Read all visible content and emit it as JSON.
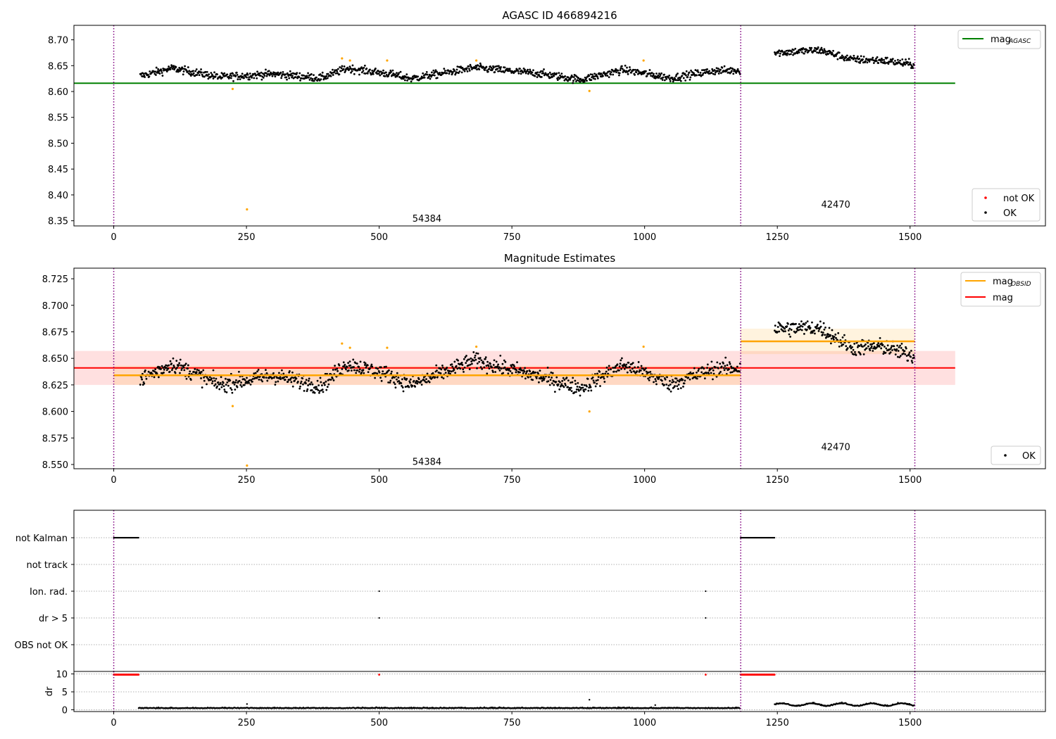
{
  "chart_data": [
    {
      "type": "scatter",
      "title": "AGASC ID 466894216",
      "x_ticks": [
        "0",
        "250",
        "500",
        "750",
        "1000",
        "1250",
        "1500"
      ],
      "y_ticks": [
        "8.35",
        "8.40",
        "8.45",
        "8.50",
        "8.55",
        "8.60",
        "8.65",
        "8.70"
      ],
      "xlim": [
        -75,
        1755
      ],
      "ylim": [
        8.34,
        8.728
      ],
      "obs_boundaries": [
        0,
        1181,
        1509
      ],
      "obs_labels": [
        {
          "text": "54384",
          "x": 590,
          "y": 8.355
        },
        {
          "text": "42470",
          "x": 1360,
          "y": 8.382
        }
      ],
      "mag_agasc": {
        "value": 8.616,
        "x_range": [
          -75,
          1585
        ],
        "color": "#008000"
      },
      "segments": [
        {
          "x_start": 50,
          "x_end": 1180,
          "levels": [
            [
              50,
              8.63
            ],
            [
              110,
              8.645
            ],
            [
              200,
              8.628
            ],
            [
              300,
              8.634
            ],
            [
              390,
              8.626
            ],
            [
              440,
              8.645
            ],
            [
              520,
              8.634
            ],
            [
              560,
              8.625
            ],
            [
              680,
              8.646
            ],
            [
              800,
              8.635
            ],
            [
              880,
              8.623
            ],
            [
              960,
              8.642
            ],
            [
              1050,
              8.626
            ],
            [
              1130,
              8.64
            ],
            [
              1180,
              8.641
            ]
          ],
          "noise": 0.006
        },
        {
          "x_start": 1245,
          "x_end": 1508,
          "levels": [
            [
              1245,
              8.675
            ],
            [
              1330,
              8.68
            ],
            [
              1390,
              8.662
            ],
            [
              1450,
              8.66
            ],
            [
              1508,
              8.652
            ]
          ],
          "noise": 0.006
        }
      ],
      "not_ok_points": [
        [
          224,
          8.605
        ],
        [
          251,
          8.372
        ],
        [
          430,
          8.664
        ],
        [
          445,
          8.66
        ],
        [
          515,
          8.66
        ],
        [
          683,
          8.66
        ],
        [
          896,
          8.601
        ],
        [
          998,
          8.66
        ]
      ],
      "colors": {
        "ok": "#000000",
        "not_ok_plotted": "#ffa500",
        "boundary": "#800080"
      },
      "legend": {
        "upper": [
          {
            "label": "mag",
            "sub": "AGASC",
            "color": "#008000"
          }
        ],
        "lower": [
          {
            "label": "not OK",
            "color": "#ff0000"
          },
          {
            "label": "OK",
            "color": "#000000"
          }
        ]
      }
    },
    {
      "type": "scatter",
      "title": "Magnitude Estimates",
      "x_ticks": [
        "0",
        "250",
        "500",
        "750",
        "1000",
        "1250",
        "1500"
      ],
      "y_ticks": [
        "8.550",
        "8.575",
        "8.600",
        "8.625",
        "8.650",
        "8.675",
        "8.700",
        "8.725"
      ],
      "xlim": [
        -75,
        1755
      ],
      "ylim": [
        8.546,
        8.735
      ],
      "obs_boundaries": [
        0,
        1181,
        1509
      ],
      "obs_labels": [
        {
          "text": "54384",
          "x": 590,
          "y": 8.553
        },
        {
          "text": "42470",
          "x": 1360,
          "y": 8.567
        }
      ],
      "mag": {
        "value": 8.641,
        "band": [
          8.625,
          8.657
        ],
        "x_range": [
          -75,
          1585
        ],
        "color": "#ff0000"
      },
      "mag_obsid": [
        {
          "x_range": [
            0,
            1181
          ],
          "value": 8.634,
          "band": [
            8.625,
            8.643
          ]
        },
        {
          "x_range": [
            1181,
            1509
          ],
          "value": 8.666,
          "band": [
            8.654,
            8.678
          ]
        }
      ],
      "segments": [
        {
          "x_start": 50,
          "x_end": 1180,
          "levels": [
            [
              50,
              8.63
            ],
            [
              110,
              8.645
            ],
            [
              200,
              8.625
            ],
            [
              300,
              8.634
            ],
            [
              390,
              8.624
            ],
            [
              440,
              8.645
            ],
            [
              520,
              8.634
            ],
            [
              560,
              8.625
            ],
            [
              680,
              8.648
            ],
            [
              800,
              8.633
            ],
            [
              880,
              8.622
            ],
            [
              960,
              8.644
            ],
            [
              1050,
              8.626
            ],
            [
              1130,
              8.64
            ],
            [
              1180,
              8.641
            ]
          ],
          "noise": 0.006
        },
        {
          "x_start": 1245,
          "x_end": 1508,
          "levels": [
            [
              1245,
              8.678
            ],
            [
              1330,
              8.679
            ],
            [
              1390,
              8.66
            ],
            [
              1450,
              8.661
            ],
            [
              1508,
              8.652
            ]
          ],
          "noise": 0.006
        }
      ],
      "highlight_points": [
        [
          224,
          8.605
        ],
        [
          251,
          8.549
        ],
        [
          430,
          8.664
        ],
        [
          445,
          8.66
        ],
        [
          515,
          8.66
        ],
        [
          683,
          8.661
        ],
        [
          896,
          8.6
        ],
        [
          998,
          8.661
        ]
      ],
      "colors": {
        "ok": "#000000",
        "highlight": "#ffa500",
        "obsid": "#ffa500",
        "boundary": "#800080"
      },
      "legend": {
        "upper": [
          {
            "label": "mag",
            "sub": "OBSID",
            "color": "#ffa500"
          },
          {
            "label": "mag",
            "sub": "",
            "color": "#ff0000"
          }
        ],
        "lower": [
          {
            "label": "OK",
            "color": "#000000"
          }
        ]
      }
    },
    {
      "type": "scatter",
      "title": "",
      "flag_rows": [
        "not Kalman",
        "not track",
        "Ion. rad.",
        "dr > 5",
        "OBS not OK"
      ],
      "flags": {
        "not Kalman": [
          [
            0,
            47
          ],
          [
            1181,
            1245
          ]
        ],
        "not track": [],
        "Ion. rad.": [
          [
            500,
            500
          ],
          [
            1115,
            1115
          ]
        ],
        "dr > 5": [
          [
            500,
            500
          ],
          [
            1115,
            1115
          ]
        ],
        "OBS not OK": []
      },
      "x_ticks": [
        "0",
        "250",
        "500",
        "750",
        "1000",
        "1250",
        "1500"
      ],
      "xlim": [
        -75,
        1755
      ],
      "obs_boundaries": [
        0,
        1181,
        1509
      ]
    },
    {
      "type": "scatter",
      "title": "",
      "ylabel": "dr",
      "y_ticks": [
        "0",
        "5",
        "10"
      ],
      "ylim": [
        -0.5,
        10.7
      ],
      "x_ticks": [
        "0",
        "250",
        "500",
        "750",
        "1000",
        "1250",
        "1500"
      ],
      "xlim": [
        -75,
        1755
      ],
      "obs_boundaries": [
        0,
        1181,
        1509
      ],
      "red_points": [
        [
          0,
          47,
          9.8
        ],
        [
          500,
          500,
          9.8
        ],
        [
          1115,
          1115,
          9.8
        ],
        [
          1181,
          1245,
          9.8
        ]
      ],
      "base_segments": [
        {
          "x_start": 47,
          "x_end": 1180,
          "level": 0.4
        },
        {
          "x_start": 1245,
          "x_end": 1508,
          "level": 1.0
        }
      ],
      "outliers": [
        [
          251,
          1.6
        ],
        [
          896,
          2.8
        ],
        [
          1020,
          1.3
        ]
      ],
      "colors": {
        "ok": "#000000",
        "flagged": "#ff0000"
      }
    }
  ]
}
